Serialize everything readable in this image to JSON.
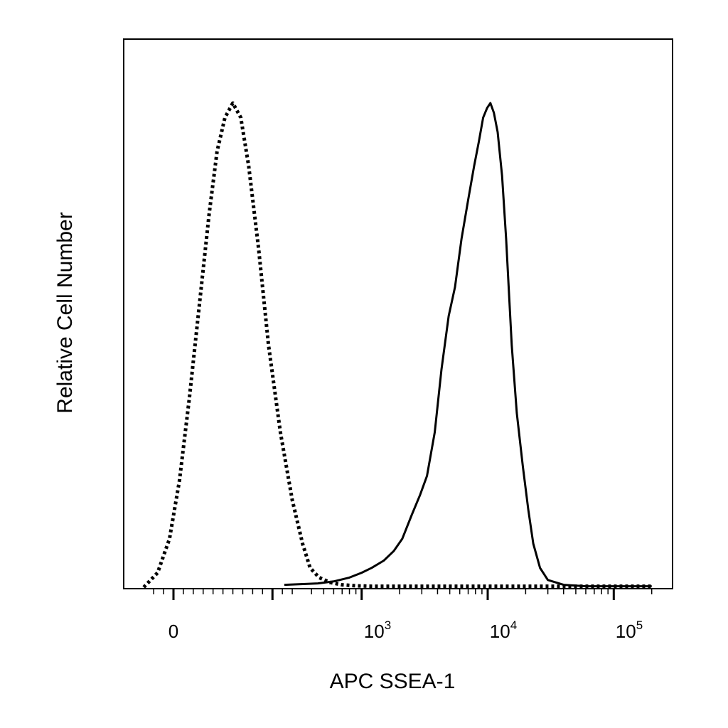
{
  "chart_data": {
    "type": "line",
    "title": "",
    "xlabel": "APC SSEA-1",
    "ylabel": "Relative Cell Number",
    "x_scale": "biexponential (linear around 0, log10 above ~10^2.5)",
    "xlim": [
      -200,
      250000
    ],
    "ylim": [
      0,
      100
    ],
    "grid": false,
    "legend": "none",
    "x_ticks": [
      {
        "label": "0",
        "value": 0
      },
      {
        "base": "10",
        "exp": "3",
        "value": 1000
      },
      {
        "base": "10",
        "exp": "4",
        "value": 10000
      },
      {
        "base": "10",
        "exp": "5",
        "value": 100000
      }
    ],
    "series": [
      {
        "style": "dotted",
        "color": "#000000",
        "x": [
          -75,
          -40,
          -10,
          15,
          40,
          65,
          90,
          110,
          130,
          150,
          170,
          190,
          215,
          240,
          270,
          300,
          340,
          390,
          460,
          560,
          700,
          900,
          1200,
          2000,
          5000,
          20000,
          100000,
          200000
        ],
        "y": [
          0,
          3,
          10,
          22,
          39,
          58,
          77,
          90,
          97,
          100,
          97,
          87,
          70,
          50,
          32,
          18,
          9,
          4,
          2,
          1,
          0.5,
          0.3,
          0.2,
          0.2,
          0.2,
          0.2,
          0.2,
          0.2
        ]
      },
      {
        "style": "solid",
        "color": "#000000",
        "x": [
          280,
          450,
          600,
          800,
          1000,
          1200,
          1500,
          1800,
          2100,
          2500,
          2900,
          3300,
          3800,
          4300,
          4900,
          5500,
          6200,
          7000,
          7800,
          8500,
          9200,
          9900,
          10500,
          11200,
          12000,
          13000,
          14000,
          15500,
          17000,
          19000,
          21000,
          23000,
          26000,
          30000,
          40000,
          60000,
          100000,
          200000
        ],
        "y": [
          0.5,
          0.8,
          1.2,
          2,
          3,
          4,
          5.5,
          7.5,
          10,
          15,
          19,
          23,
          32,
          45,
          56,
          62,
          72,
          80,
          87,
          92,
          97,
          99,
          100,
          98,
          94,
          85,
          72,
          50,
          36,
          25,
          16,
          9,
          4,
          1.5,
          0.5,
          0.2,
          0.2,
          0.2
        ]
      }
    ]
  }
}
